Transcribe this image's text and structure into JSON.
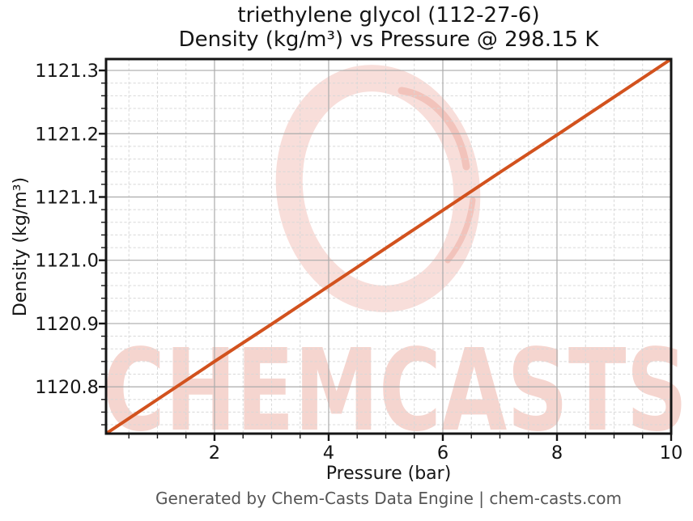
{
  "chart_data": {
    "type": "line",
    "title_line1": "triethylene glycol (112-27-6)",
    "title_line2": "Density (kg/m³) vs Pressure @ 298.15 K",
    "xlabel": "Pressure (bar)",
    "ylabel": "Density (kg/m³)",
    "xlim": [
      0.1,
      10
    ],
    "ylim": [
      1120.726,
      1121.318
    ],
    "x_major_ticks": [
      2,
      4,
      6,
      8,
      10
    ],
    "x_minor_step": 0.5,
    "y_major_ticks": [
      1120.8,
      1120.9,
      1121.0,
      1121.1,
      1121.2,
      1121.3
    ],
    "y_minor_step": 0.02,
    "y_tick_decimals": 1,
    "grid": true,
    "legend": "none",
    "axis_color": "#151515",
    "major_grid_color": "#ababab",
    "minor_grid_color": "#d8d8d8",
    "series": [
      {
        "name": "Density @ 298.15 K",
        "color": "#d2521e",
        "x": [
          0.1,
          1,
          2,
          3,
          4,
          5,
          6,
          7,
          8,
          9,
          10
        ],
        "y": [
          1120.726,
          1120.78,
          1120.84,
          1120.899,
          1120.959,
          1121.019,
          1121.079,
          1121.139,
          1121.198,
          1121.258,
          1121.318
        ]
      }
    ]
  },
  "watermark": {
    "text": "CHEMCASTS",
    "text_color": "rgba(211,62,38,0.22)",
    "ring_color": "rgba(214,73,48,0.18)"
  },
  "footer": {
    "credit": "Generated by Chem-Casts Data Engine | chem-casts.com"
  }
}
